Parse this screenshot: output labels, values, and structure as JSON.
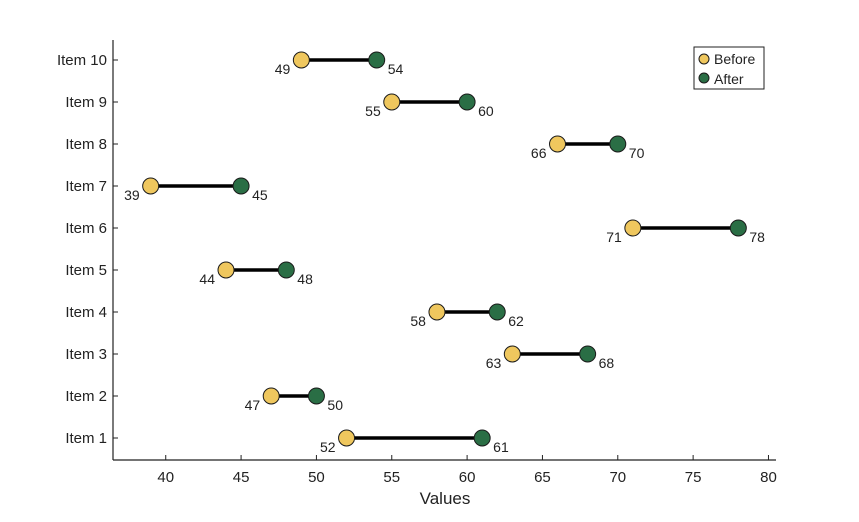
{
  "chart_data": {
    "type": "dumbbell",
    "categories": [
      "Item 1",
      "Item 2",
      "Item 3",
      "Item 4",
      "Item 5",
      "Item 6",
      "Item 7",
      "Item 8",
      "Item 9",
      "Item 10"
    ],
    "series": [
      {
        "name": "Before",
        "values": [
          52,
          47,
          63,
          58,
          44,
          71,
          39,
          66,
          55,
          49
        ],
        "color": "#EFC75E"
      },
      {
        "name": "After",
        "values": [
          61,
          50,
          68,
          62,
          48,
          78,
          45,
          70,
          60,
          54
        ],
        "color": "#2A6E45"
      }
    ],
    "xlabel": "Values",
    "ylabel": "",
    "title": "",
    "xlim": [
      36.5,
      80.5
    ],
    "xticks": [
      40,
      45,
      50,
      55,
      60,
      65,
      70,
      75,
      80
    ],
    "grid": false,
    "legend_position": "top-right"
  }
}
